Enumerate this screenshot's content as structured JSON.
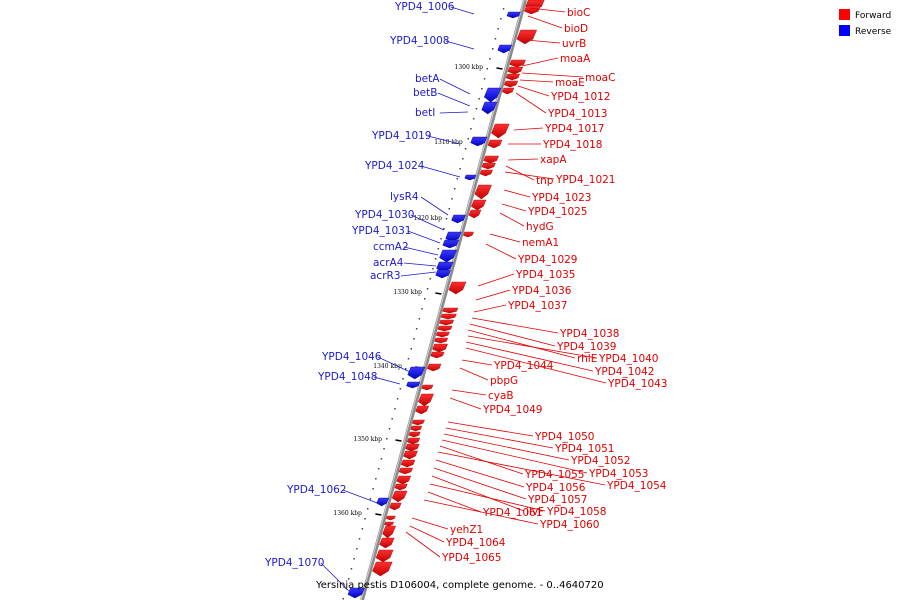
{
  "caption": "Yersinia pestis D106004, complete genome. - 0..4640720",
  "legend": [
    {
      "label": "Forward",
      "color": "#ff0000"
    },
    {
      "label": "Reverse",
      "color": "#0000ff"
    }
  ],
  "ticks": [
    "1300 kbp",
    "1310 kbp",
    "1320 kbp",
    "1330 kbp",
    "1340 kbp",
    "1350 kbp",
    "1360 kbp"
  ],
  "reverse_genes": [
    "YPD4_1006",
    "YPD4_1008",
    "betA",
    "betB",
    "betI",
    "YPD4_1019",
    "YPD4_1024",
    "lysR4",
    "YPD4_1030",
    "YPD4_1031",
    "ccmA2",
    "acrA4",
    "acrR3",
    "YPD4_1046",
    "YPD4_1048",
    "YPD4_1062",
    "YPD4_1070"
  ],
  "forward_genes": [
    "bioC",
    "bioD",
    "uvrB",
    "moaA",
    "moaC",
    "moaE",
    "YPD4_1012",
    "YPD4_1013",
    "YPD4_1017",
    "YPD4_1018",
    "xapA",
    "tnp",
    "YPD4_1021",
    "YPD4_1023",
    "YPD4_1025",
    "hydG",
    "nemA1",
    "YPD4_1029",
    "YPD4_1035",
    "YPD4_1036",
    "YPD4_1037",
    "YPD4_1038",
    "YPD4_1039",
    "rhlE",
    "YPD4_1040",
    "YPD4_1042",
    "YPD4_1043",
    "YPD4_1044",
    "pbpG",
    "cyaB",
    "YPD4_1049",
    "YPD4_1050",
    "YPD4_1051",
    "YPD4_1052",
    "YPD4_1053",
    "YPD4_1055",
    "YPD4_1054",
    "YPD4_1056",
    "YPD4_1057",
    "ilvF",
    "YPD4_1058",
    "YPD4_1061",
    "YPD4_1060",
    "yehZ1",
    "YPD4_1064",
    "YPD4_1065"
  ]
}
